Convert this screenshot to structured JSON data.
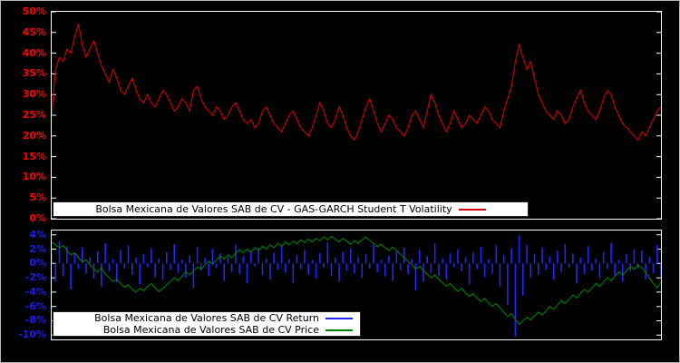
{
  "colors": {
    "background": "#000000",
    "frame_border": "#b6b6b6",
    "plot_border": "#ffffff",
    "top_axis_labels": "#ff0000",
    "bottom_axis_labels": "#1a1aff",
    "legend_bg": "#ffffff",
    "legend_text": "#000000"
  },
  "chart_data": [
    {
      "type": "line",
      "title": "Bolsa Mexicana de Valores SAB de CV - GAS-GARCH Student T Volatility",
      "xlabel": "",
      "ylabel": "",
      "unit": "percent",
      "ylim": [
        0,
        50
      ],
      "grid": false,
      "legend_position": "bottom-center-inside",
      "yticks": [
        0,
        5,
        10,
        15,
        20,
        25,
        30,
        35,
        40,
        45,
        50
      ],
      "ytick_labels": [
        "0%",
        "5%",
        "10%",
        "15%",
        "20%",
        "25%",
        "30%",
        "35%",
        "40%",
        "45%",
        "50%"
      ],
      "series": [
        {
          "name": "Bolsa Mexicana de Valores SAB de CV - GAS-GARCH Student T Volatility",
          "color": "#d40000",
          "values": [
            25,
            36,
            39,
            38,
            41,
            40,
            44,
            47,
            42,
            39,
            41,
            43,
            40,
            37,
            35,
            33,
            36,
            34,
            31,
            30,
            32,
            34,
            31,
            29,
            28,
            30,
            28,
            27,
            29,
            31,
            30,
            28,
            26,
            27,
            29,
            28,
            26,
            31,
            32,
            29,
            27,
            26,
            25,
            27,
            26,
            24,
            25,
            27,
            28,
            26,
            24,
            23,
            24,
            22,
            23,
            26,
            27,
            25,
            23,
            22,
            21,
            23,
            25,
            26,
            24,
            22,
            21,
            20,
            22,
            25,
            28,
            26,
            23,
            22,
            24,
            27,
            25,
            22,
            20,
            19,
            21,
            24,
            27,
            29,
            26,
            23,
            21,
            23,
            25,
            24,
            22,
            21,
            20,
            22,
            25,
            26,
            24,
            22,
            26,
            30,
            28,
            25,
            23,
            21,
            23,
            26,
            24,
            22,
            23,
            25,
            24,
            23,
            25,
            27,
            26,
            24,
            23,
            22,
            26,
            29,
            32,
            38,
            42,
            39,
            36,
            38,
            34,
            30,
            28,
            26,
            25,
            24,
            26,
            25,
            23,
            24,
            27,
            29,
            31,
            28,
            26,
            25,
            24,
            26,
            29,
            31,
            30,
            27,
            25,
            23,
            22,
            21,
            20,
            19,
            21,
            20,
            22,
            24,
            26,
            27
          ]
        }
      ]
    },
    {
      "type": "mixed",
      "title": "",
      "xlabel": "",
      "ylabel": "",
      "unit": "percent",
      "ylim": [
        -10.6,
        4.6
      ],
      "grid": false,
      "legend_position": "bottom-left-inside",
      "yticks": [
        4,
        2,
        0,
        -2,
        -4,
        -6,
        -8,
        -10
      ],
      "ytick_labels": [
        "4%",
        "2%",
        "0%",
        "-2%",
        "-4%",
        "-6%",
        "-8%",
        "-10%"
      ],
      "series": [
        {
          "name": "Bolsa Mexicana de Valores SAB de CV Return",
          "type": "bar",
          "color": "#2424ff",
          "values": [
            1.2,
            -2.5,
            3.1,
            -1.8,
            2.4,
            -3.6,
            1.5,
            -0.8,
            2.2,
            -1.4,
            0.9,
            -2.1,
            1.7,
            -3.2,
            2.8,
            -1.1,
            0.6,
            -2.6,
            1.9,
            -0.7,
            2.5,
            -1.6,
            0.8,
            -2.9,
            1.3,
            -0.5,
            2.1,
            -1.9,
            0.7,
            -2.3,
            1.6,
            -0.9,
            2.7,
            -1.3,
            0.5,
            -2.0,
            1.1,
            -3.4,
            2.3,
            -1.0,
            0.8,
            -1.7,
            2.0,
            -0.6,
            1.4,
            -2.4,
            0.9,
            -1.2,
            2.6,
            -1.5,
            1.0,
            -2.8,
            1.8,
            -0.4,
            2.2,
            -1.6,
            0.7,
            -2.2,
            1.5,
            -0.9,
            2.4,
            -1.3,
            0.6,
            -2.7,
            1.2,
            -0.8,
            1.9,
            -1.5,
            0.5,
            -2.1,
            1.4,
            -0.6,
            2.9,
            -1.8,
            0.8,
            -2.5,
            1.6,
            -1.0,
            2.1,
            -1.4,
            0.9,
            -2.0,
            1.3,
            -0.7,
            2.6,
            -1.2,
            0.5,
            -1.8,
            1.1,
            -2.4,
            1.7,
            -0.9,
            2.2,
            -1.5,
            0.6,
            -3.8,
            1.9,
            -2.6,
            1.0,
            -1.3,
            2.8,
            -1.7,
            0.7,
            -2.2,
            1.4,
            -0.5,
            2.0,
            -1.1,
            0.9,
            -2.9,
            1.5,
            -0.8,
            2.3,
            -1.9,
            0.6,
            -1.4,
            2.5,
            -3.2,
            1.2,
            -5.8,
            2.1,
            -10.2,
            3.9,
            -4.5,
            2.6,
            -2.0,
            1.3,
            -1.6,
            2.2,
            -0.9,
            1.0,
            -2.3,
            1.8,
            -1.2,
            2.7,
            -0.6,
            1.4,
            -2.8,
            0.8,
            -1.5,
            2.4,
            -1.0,
            0.7,
            -2.1,
            1.6,
            -0.8,
            2.9,
            -1.7,
            0.5,
            -2.5,
            1.3,
            -1.1,
            2.0,
            -0.7,
            1.8,
            -2.2,
            0.9,
            -1.4,
            2.6,
            -1.8
          ]
        },
        {
          "name": "Bolsa Mexicana de Valores SAB de CV Price",
          "type": "line",
          "color": "#008000",
          "values": [
            3.0,
            2.6,
            2.2,
            2.5,
            1.8,
            1.2,
            1.5,
            0.8,
            0.2,
            0.5,
            -0.2,
            -0.8,
            -1.2,
            -0.6,
            -1.5,
            -2.0,
            -2.5,
            -2.2,
            -2.8,
            -3.3,
            -3.0,
            -3.6,
            -4.0,
            -3.5,
            -3.8,
            -3.2,
            -2.8,
            -3.4,
            -3.9,
            -3.5,
            -3.0,
            -2.5,
            -2.0,
            -2.4,
            -1.8,
            -1.2,
            -1.6,
            -1.0,
            -0.5,
            -0.8,
            -0.2,
            0.3,
            -0.1,
            0.5,
            1.0,
            0.6,
            1.2,
            0.8,
            1.4,
            1.9,
            1.5,
            2.0,
            1.6,
            2.2,
            1.8,
            2.4,
            2.0,
            2.6,
            2.2,
            2.8,
            2.4,
            3.0,
            2.6,
            3.1,
            2.7,
            3.3,
            2.9,
            3.4,
            3.0,
            3.5,
            3.2,
            3.7,
            3.3,
            3.8,
            3.4,
            3.0,
            3.5,
            3.1,
            2.7,
            3.2,
            2.8,
            3.3,
            3.7,
            3.2,
            2.8,
            2.3,
            2.7,
            2.2,
            1.8,
            2.3,
            1.8,
            1.3,
            0.8,
            0.3,
            -0.2,
            -0.8,
            -0.4,
            -1.0,
            -1.5,
            -2.0,
            -1.6,
            -2.2,
            -2.7,
            -3.2,
            -2.8,
            -3.4,
            -3.9,
            -3.5,
            -4.1,
            -4.6,
            -4.2,
            -4.8,
            -5.3,
            -4.9,
            -5.5,
            -6.0,
            -5.6,
            -6.2,
            -6.8,
            -7.4,
            -7.0,
            -7.8,
            -8.5,
            -8.0,
            -7.5,
            -7.9,
            -7.3,
            -6.8,
            -7.2,
            -6.6,
            -6.0,
            -6.4,
            -5.8,
            -5.2,
            -5.6,
            -5.0,
            -4.4,
            -4.8,
            -4.2,
            -3.6,
            -4.0,
            -3.4,
            -2.8,
            -3.2,
            -2.6,
            -2.0,
            -2.4,
            -1.8,
            -1.2,
            -1.6,
            -1.0,
            -0.4,
            -0.8,
            -0.2,
            -0.6,
            -1.2,
            -2.0,
            -2.8,
            -3.4,
            -2.6
          ]
        }
      ]
    }
  ]
}
